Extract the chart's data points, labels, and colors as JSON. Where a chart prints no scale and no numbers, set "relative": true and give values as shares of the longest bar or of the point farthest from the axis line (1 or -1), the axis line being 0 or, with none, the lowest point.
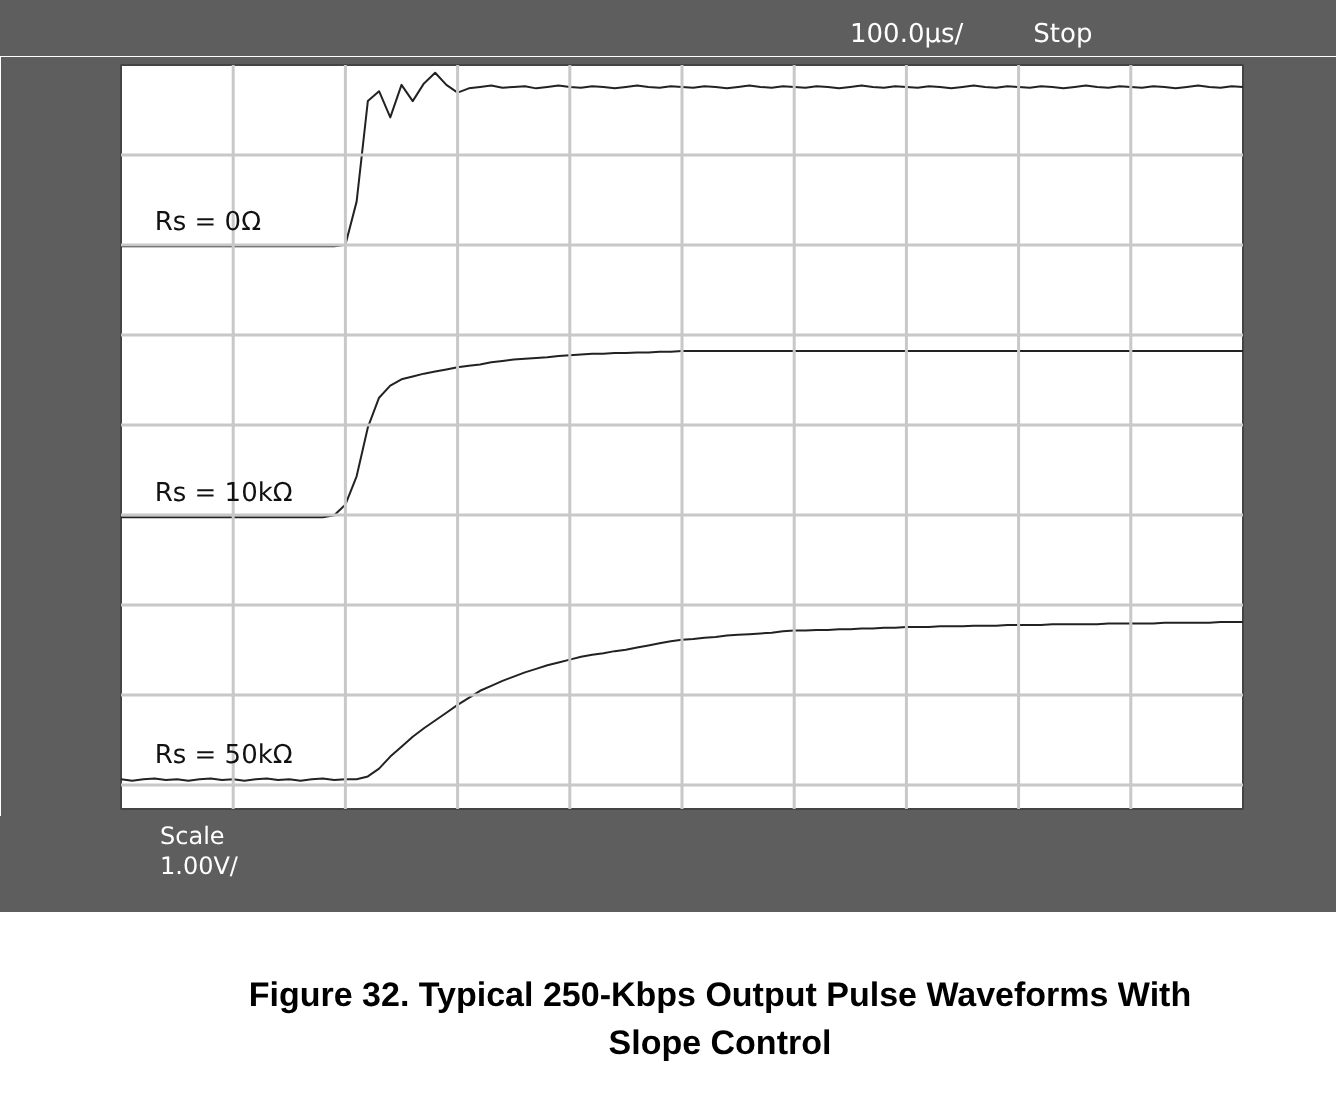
{
  "chart_data": {
    "type": "line",
    "relative": true,
    "grid": true,
    "title": "Figure 32. Typical 250-Kbps Output Pulse Waveforms With Slope Control",
    "annotations": [
      "100.0µs/",
      "Stop",
      "Scale",
      "1.00V/"
    ],
    "categories": [
      null,
      null,
      null,
      null,
      null,
      null,
      null,
      null,
      null,
      null,
      null,
      null,
      null,
      null,
      null,
      null,
      null,
      null,
      null,
      null,
      null,
      null,
      null,
      null,
      null,
      null,
      null,
      null,
      null,
      null,
      null,
      null,
      null,
      null,
      null,
      null,
      null,
      null,
      null,
      null,
      null,
      null,
      null,
      null,
      null,
      null,
      null,
      null,
      null,
      null,
      null,
      null,
      null,
      null,
      null,
      null,
      null,
      null,
      null,
      null,
      null,
      null,
      null,
      null,
      null,
      null,
      null,
      null,
      null,
      null,
      null,
      null,
      null,
      null,
      null,
      null,
      null,
      null,
      null,
      null,
      null,
      null,
      null,
      null,
      null,
      null,
      null,
      null,
      null,
      null,
      null,
      null,
      null,
      null,
      null,
      null,
      null,
      null,
      null,
      null,
      null
    ],
    "series": [
      {
        "name": "Rs = 0Ω",
        "color": "#222222",
        "values": [
          0.755,
          0.755,
          0.755,
          0.755,
          0.755,
          0.755,
          0.755,
          0.755,
          0.755,
          0.755,
          0.755,
          0.755,
          0.755,
          0.755,
          0.755,
          0.755,
          0.755,
          0.755,
          0.755,
          0.755,
          0.757,
          0.818,
          0.96,
          0.974,
          0.937,
          0.983,
          0.96,
          0.985,
          1.0,
          0.983,
          0.972,
          0.978,
          0.98,
          0.982,
          0.979,
          0.98,
          0.981,
          0.978,
          0.98,
          0.982,
          0.98,
          0.979,
          0.981,
          0.98,
          0.978,
          0.98,
          0.982,
          0.98,
          0.979,
          0.981,
          0.98,
          0.979,
          0.981,
          0.98,
          0.978,
          0.98,
          0.982,
          0.98,
          0.979,
          0.981,
          0.98,
          0.979,
          0.981,
          0.98,
          0.978,
          0.98,
          0.982,
          0.98,
          0.979,
          0.981,
          0.98,
          0.979,
          0.981,
          0.98,
          0.978,
          0.98,
          0.982,
          0.98,
          0.979,
          0.981,
          0.98,
          0.979,
          0.981,
          0.98,
          0.978,
          0.98,
          0.982,
          0.98,
          0.979,
          0.981,
          0.98,
          0.979,
          0.981,
          0.98,
          0.978,
          0.98,
          0.982,
          0.98,
          0.979,
          0.981,
          0.98
        ]
      },
      {
        "name": "Rs = 10kΩ",
        "color": "#222222",
        "values": [
          0.372,
          0.372,
          0.372,
          0.372,
          0.372,
          0.372,
          0.372,
          0.372,
          0.372,
          0.372,
          0.372,
          0.372,
          0.372,
          0.372,
          0.372,
          0.372,
          0.372,
          0.372,
          0.372,
          0.375,
          0.39,
          0.43,
          0.499,
          0.541,
          0.558,
          0.567,
          0.571,
          0.575,
          0.578,
          0.581,
          0.584,
          0.586,
          0.588,
          0.591,
          0.593,
          0.595,
          0.596,
          0.597,
          0.598,
          0.6,
          0.601,
          0.602,
          0.603,
          0.603,
          0.604,
          0.604,
          0.605,
          0.605,
          0.606,
          0.606,
          0.607,
          0.607,
          0.607,
          0.607,
          0.607,
          0.607,
          0.607,
          0.607,
          0.607,
          0.607,
          0.607,
          0.607,
          0.607,
          0.607,
          0.607,
          0.607,
          0.607,
          0.607,
          0.607,
          0.607,
          0.607,
          0.607,
          0.607,
          0.607,
          0.607,
          0.607,
          0.607,
          0.607,
          0.607,
          0.607,
          0.607,
          0.607,
          0.607,
          0.607,
          0.607,
          0.607,
          0.607,
          0.607,
          0.607,
          0.607,
          0.607,
          0.607,
          0.607,
          0.607,
          0.607,
          0.607,
          0.607,
          0.607,
          0.607,
          0.607,
          0.607
        ]
      },
      {
        "name": "Rs = 50kΩ",
        "color": "#222222",
        "values": [
          0.002,
          0.0,
          0.002,
          0.003,
          0.001,
          0.002,
          0.0,
          0.002,
          0.003,
          0.001,
          0.002,
          0.0,
          0.002,
          0.003,
          0.001,
          0.002,
          0.0,
          0.002,
          0.003,
          0.001,
          0.002,
          0.002,
          0.006,
          0.017,
          0.034,
          0.048,
          0.062,
          0.074,
          0.085,
          0.096,
          0.107,
          0.117,
          0.127,
          0.134,
          0.141,
          0.147,
          0.153,
          0.158,
          0.163,
          0.167,
          0.171,
          0.175,
          0.178,
          0.18,
          0.183,
          0.185,
          0.188,
          0.191,
          0.194,
          0.197,
          0.199,
          0.2,
          0.202,
          0.203,
          0.205,
          0.206,
          0.207,
          0.208,
          0.209,
          0.211,
          0.212,
          0.212,
          0.213,
          0.213,
          0.214,
          0.214,
          0.215,
          0.215,
          0.216,
          0.216,
          0.217,
          0.217,
          0.217,
          0.218,
          0.218,
          0.218,
          0.219,
          0.219,
          0.219,
          0.22,
          0.22,
          0.22,
          0.22,
          0.221,
          0.221,
          0.221,
          0.221,
          0.221,
          0.222,
          0.222,
          0.222,
          0.222,
          0.222,
          0.223,
          0.223,
          0.223,
          0.223,
          0.223,
          0.224,
          0.224,
          0.224
        ]
      }
    ]
  }
}
